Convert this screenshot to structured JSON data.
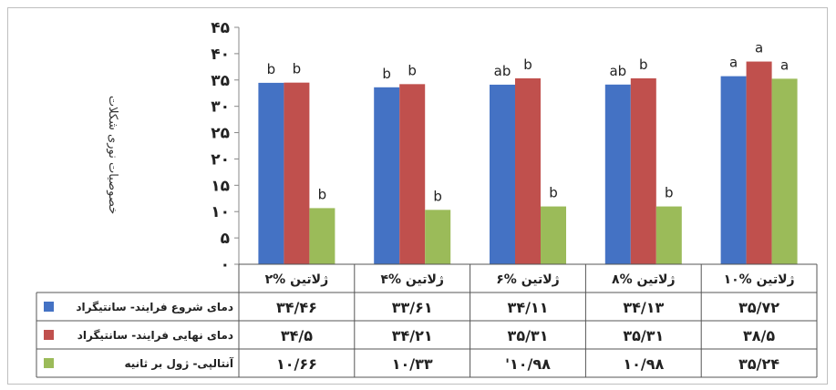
{
  "chart_data": {
    "type": "bar",
    "ylabel": "خصوصیات نوری شکلات",
    "ylim": [
      0,
      45
    ],
    "yticks": [
      "۰",
      "۵",
      "۱۰",
      "۱۵",
      "۲۰",
      "۲۵",
      "۳۰",
      "۳۵",
      "۴۰",
      "۴۵"
    ],
    "ytick_values": [
      0,
      5,
      10,
      15,
      20,
      25,
      30,
      35,
      40,
      45
    ],
    "categories": [
      "۲% ژلاتین",
      "۴% ژلاتین",
      "۶% ژلاتین",
      "۸% ژلاتین",
      "۱۰% ژلاتین"
    ],
    "series": [
      {
        "name": "دمای شروع فرایند- سانتیگراد",
        "color": "#4472c4",
        "values": [
          34.46,
          33.61,
          34.11,
          34.13,
          35.72
        ],
        "value_labels": [
          "۳۴/۴۶",
          "۳۳/۶۱",
          "۳۴/۱۱",
          "۳۴/۱۳",
          "۳۵/۷۲"
        ],
        "letters": [
          "b",
          "b",
          "ab",
          "ab",
          "a"
        ]
      },
      {
        "name": "دمای نهایی فرایند- سانتیگراد",
        "color": "#c0504d",
        "values": [
          34.5,
          34.21,
          35.31,
          35.31,
          38.5
        ],
        "value_labels": [
          "۳۴/۵",
          "۳۴/۲۱",
          "۳۵/۳۱",
          "۳۵/۳۱",
          "۳۸/۵"
        ],
        "letters": [
          "b",
          "b",
          "b",
          "b",
          "a"
        ]
      },
      {
        "name": "آنتالپی- ژول بر ثانیه",
        "color": "#9bbb59",
        "values": [
          10.66,
          10.33,
          10.98,
          10.98,
          35.24
        ],
        "value_labels": [
          "۱۰/۶۶",
          "۱۰/۳۳",
          "'۱۰/۹۸",
          "۱۰/۹۸",
          "۳۵/۲۴"
        ],
        "letters": [
          "b",
          "b",
          "b",
          "b",
          "a"
        ]
      }
    ],
    "grid": false,
    "legend": "data-table-left"
  }
}
